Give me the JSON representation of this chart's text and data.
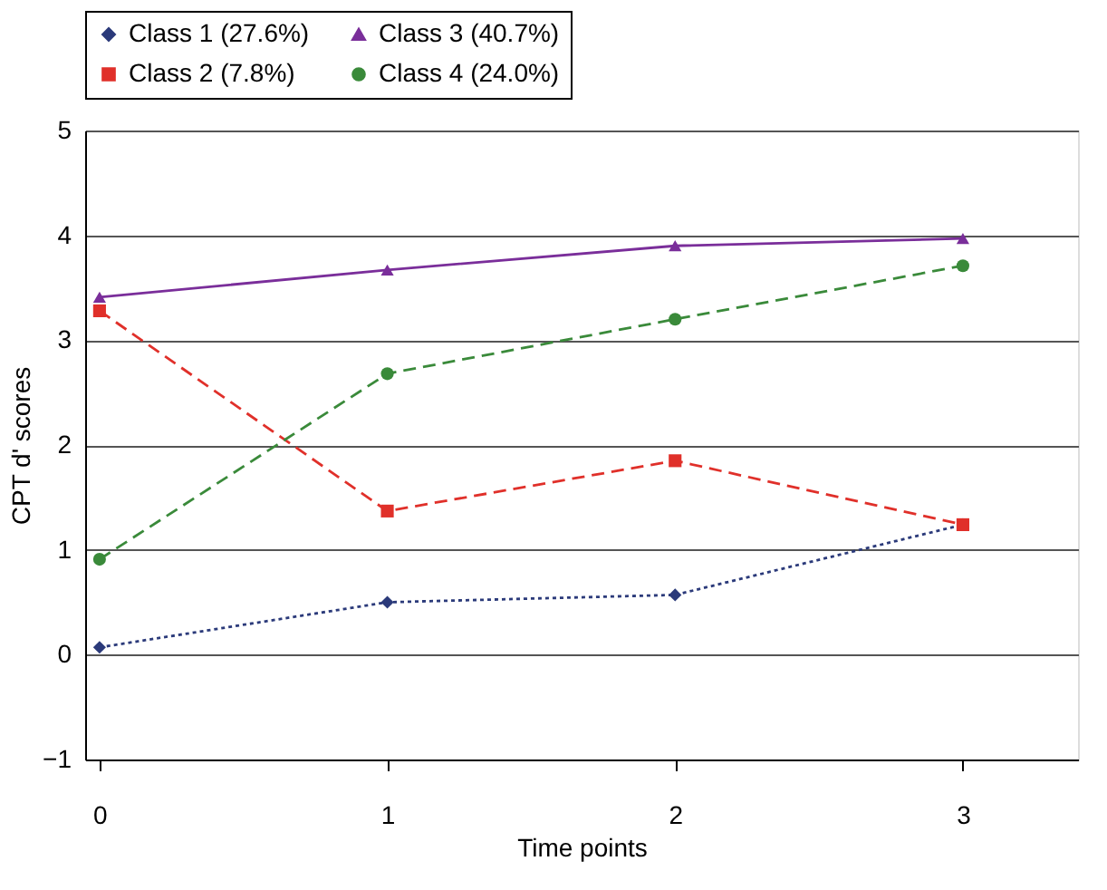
{
  "chart_data": {
    "type": "line",
    "xlabel": "Time points",
    "ylabel": "CPT d' scores",
    "categories": [
      "0",
      "1",
      "2",
      "3"
    ],
    "ylim": [
      -1,
      5
    ],
    "yticks": [
      -1,
      0,
      1,
      2,
      3,
      4,
      5
    ],
    "grid": "y",
    "legend": "top",
    "series": [
      {
        "name": "Class 1 (27.6%)",
        "color": "#2b3a7a",
        "marker": "diamond",
        "line_style": "dotted",
        "values": [
          0.07,
          0.5,
          0.57,
          1.24
        ]
      },
      {
        "name": "Class 2 (7.8%)",
        "color": "#e0302a",
        "marker": "square",
        "line_style": "dashed",
        "values": [
          3.28,
          1.37,
          1.85,
          1.24
        ]
      },
      {
        "name": "Class 3 (40.7%)",
        "color": "#7a2e9a",
        "marker": "triangle",
        "line_style": "solid",
        "values": [
          3.41,
          3.67,
          3.9,
          3.97
        ]
      },
      {
        "name": "Class 4 (24.0%)",
        "color": "#3a8a3a",
        "marker": "circle",
        "line_style": "dashed",
        "values": [
          0.91,
          2.68,
          3.2,
          3.71
        ]
      }
    ]
  }
}
